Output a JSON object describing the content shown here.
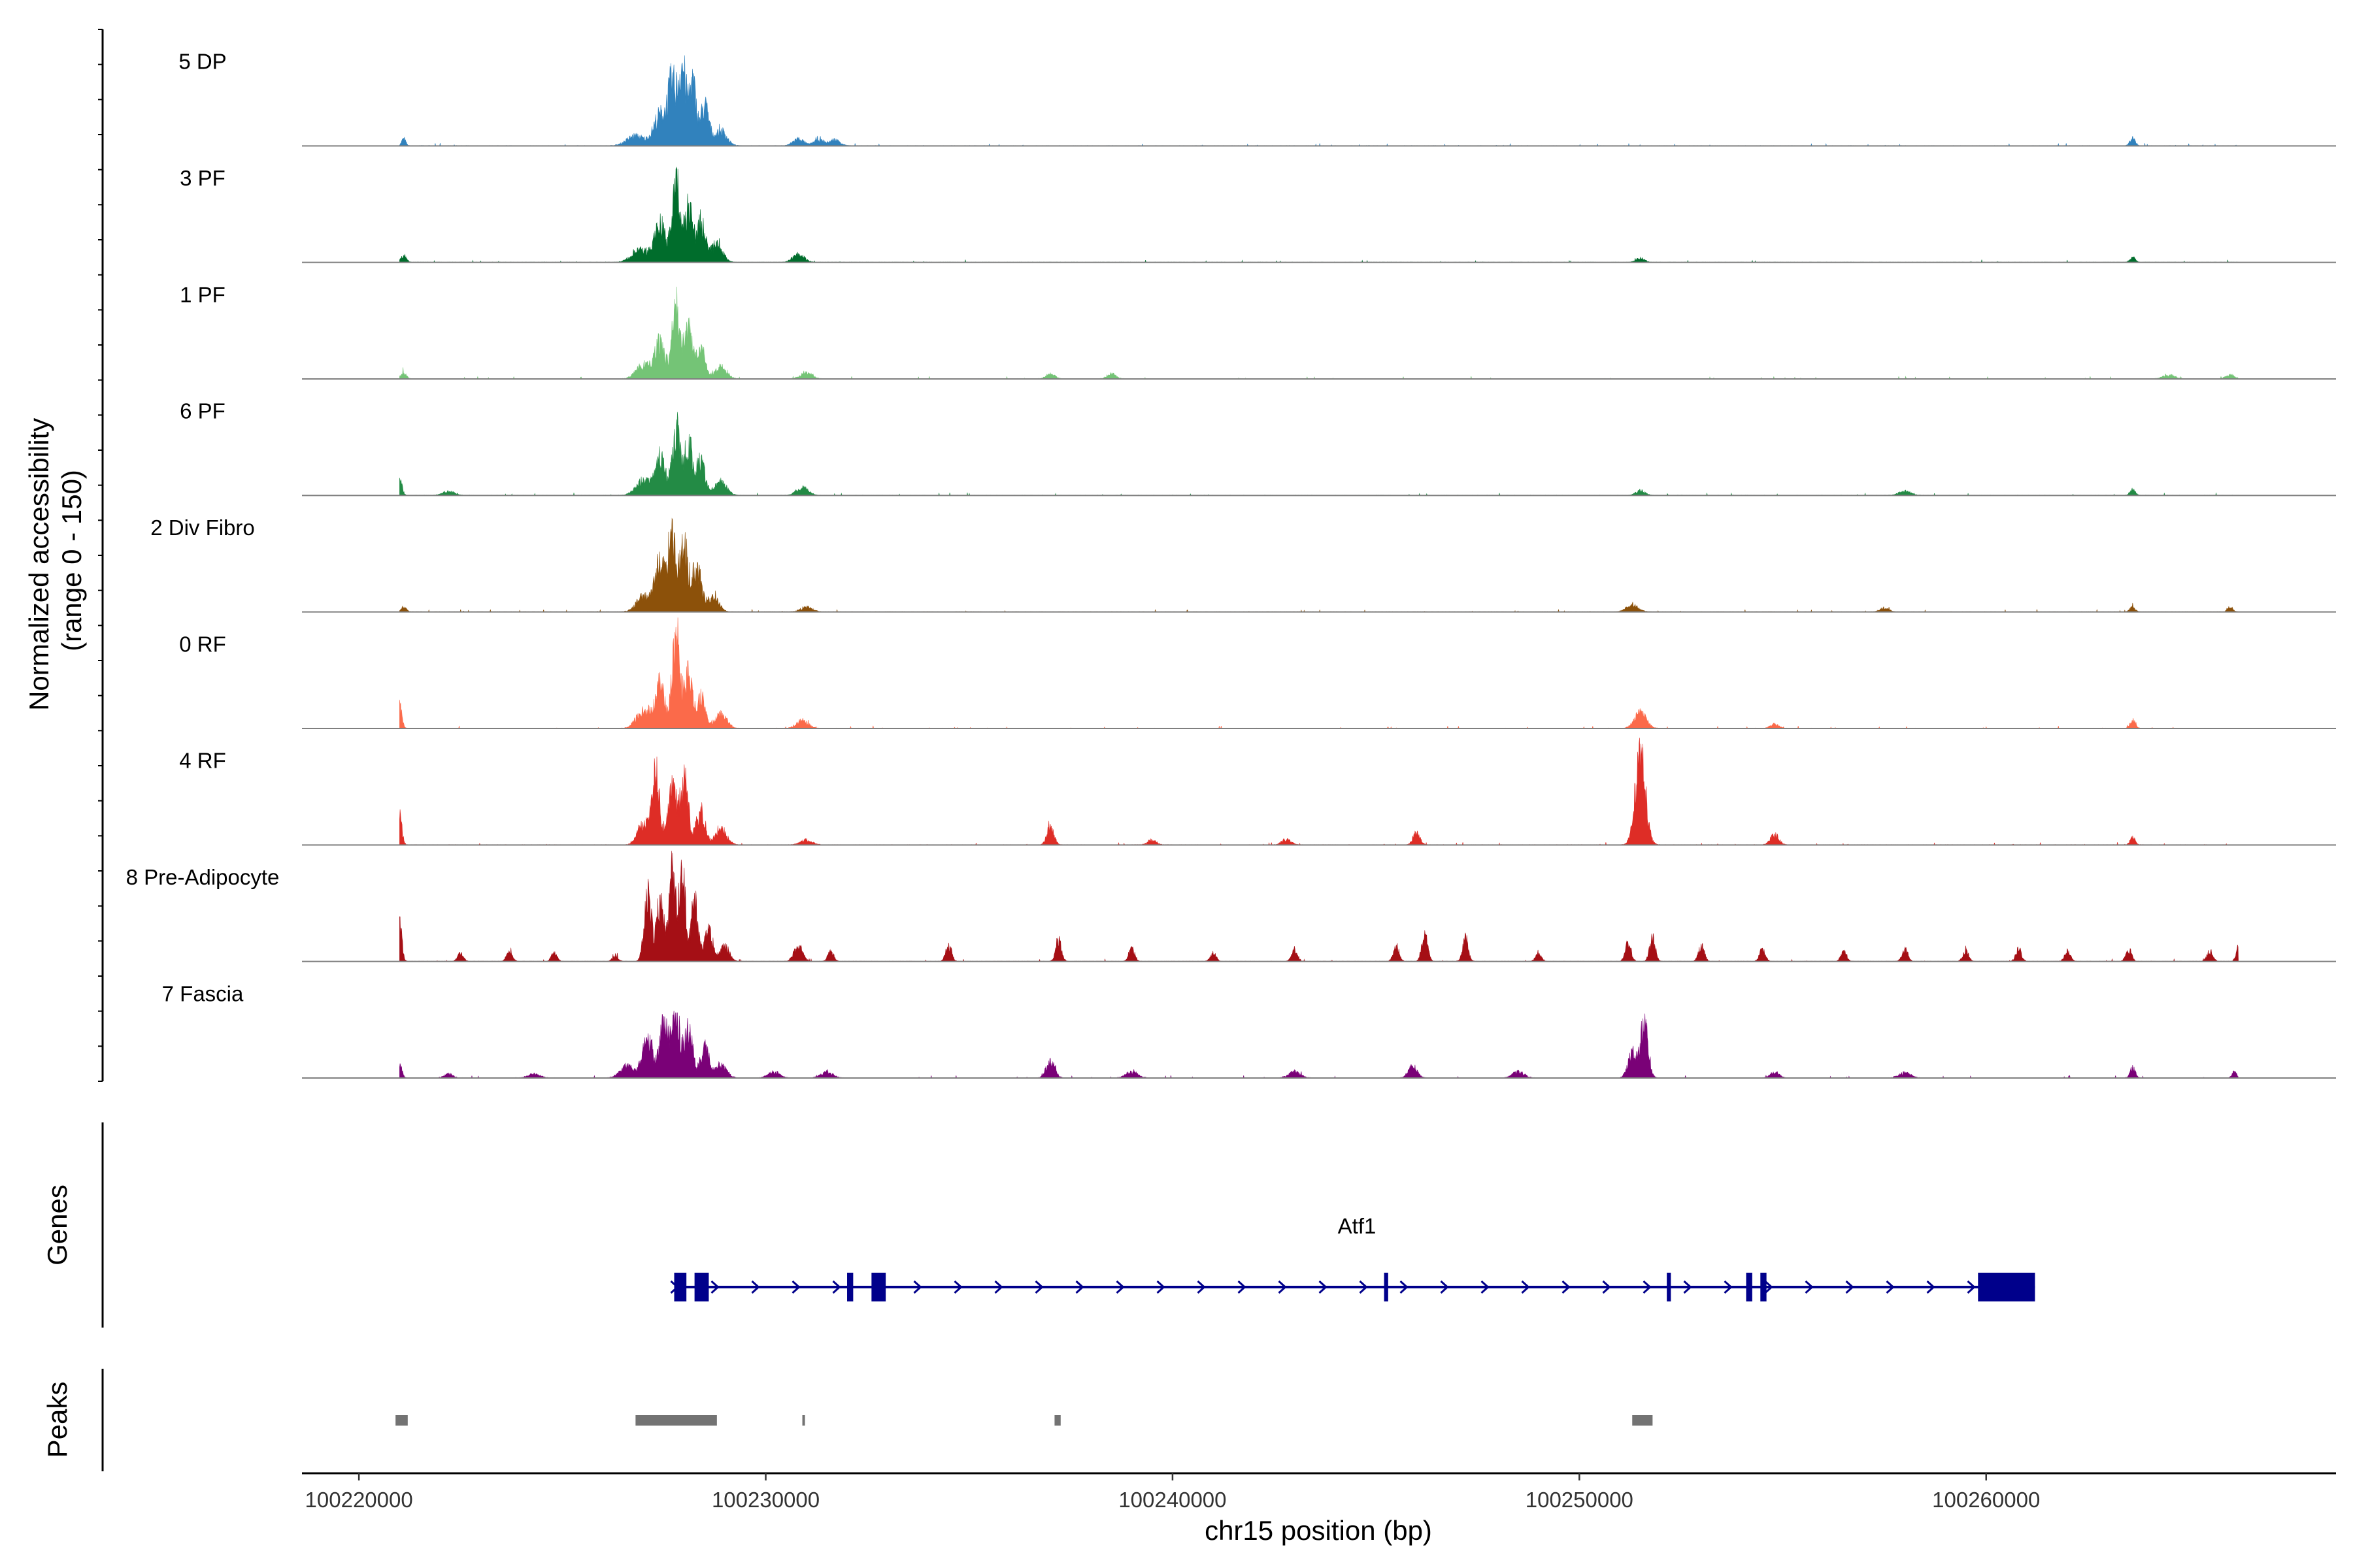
{
  "chart_data": {
    "type": "coverage",
    "title": "",
    "chromosome": "chr15",
    "xlabel": "chr15 position (bp)",
    "ylabel_line1": "Normalized accessibility",
    "ylabel_line2": "(range 0 - 150)",
    "ylim": [
      0,
      150
    ],
    "xlim": [
      100218600,
      100268600
    ],
    "data_range": [
      100221000,
      100266200
    ],
    "x_ticks": [
      100220000,
      100230000,
      100240000,
      100250000,
      100260000
    ],
    "x_tick_labels": [
      "100220000",
      "100230000",
      "100240000",
      "100250000",
      "100260000"
    ],
    "series": [
      {
        "name": "5 DP",
        "color": "#3182bd",
        "peaks": [
          [
            100221100,
            7,
            70
          ],
          [
            100226800,
            10,
            300
          ],
          [
            100227400,
            30,
            220
          ],
          [
            100227700,
            58,
            150
          ],
          [
            100227950,
            78,
            130
          ],
          [
            100228200,
            62,
            120
          ],
          [
            100228500,
            40,
            150
          ],
          [
            100228900,
            15,
            200
          ],
          [
            100230800,
            7,
            180
          ],
          [
            100231300,
            6,
            180
          ],
          [
            100231700,
            6,
            180
          ],
          [
            100263600,
            8,
            90
          ]
        ]
      },
      {
        "name": "3 PF",
        "color": "#006d2c",
        "peaks": [
          [
            100221100,
            7,
            90
          ],
          [
            100226900,
            12,
            280
          ],
          [
            100227400,
            38,
            200
          ],
          [
            100227800,
            75,
            140
          ],
          [
            100228100,
            55,
            130
          ],
          [
            100228400,
            40,
            150
          ],
          [
            100228800,
            18,
            200
          ],
          [
            100230800,
            8,
            200
          ],
          [
            100251500,
            4,
            150
          ],
          [
            100263600,
            5,
            90
          ]
        ]
      },
      {
        "name": "1 PF",
        "color": "#74c476",
        "peaks": [
          [
            100221100,
            7,
            90
          ],
          [
            100227000,
            14,
            250
          ],
          [
            100227400,
            35,
            180
          ],
          [
            100227800,
            72,
            140
          ],
          [
            100228100,
            52,
            130
          ],
          [
            100228400,
            30,
            150
          ],
          [
            100228900,
            12,
            200
          ],
          [
            100231000,
            6,
            200
          ],
          [
            100237000,
            5,
            150
          ],
          [
            100238500,
            5,
            150
          ],
          [
            100264500,
            4,
            200
          ],
          [
            100266000,
            4,
            150
          ]
        ]
      },
      {
        "name": "6 PF",
        "color": "#238b45",
        "peaks": [
          [
            100221000,
            16,
            80
          ],
          [
            100222200,
            4,
            200
          ],
          [
            100227000,
            15,
            260
          ],
          [
            100227400,
            38,
            180
          ],
          [
            100227800,
            68,
            140
          ],
          [
            100228100,
            55,
            130
          ],
          [
            100228400,
            35,
            150
          ],
          [
            100228900,
            14,
            200
          ],
          [
            100230900,
            8,
            200
          ],
          [
            100251500,
            5,
            150
          ],
          [
            100258000,
            4,
            200
          ],
          [
            100263600,
            6,
            90
          ]
        ]
      },
      {
        "name": "2 Div Fibro",
        "color": "#8c510a",
        "peaks": [
          [
            100221100,
            5,
            90
          ],
          [
            100227000,
            15,
            250
          ],
          [
            100227400,
            48,
            170
          ],
          [
            100227700,
            72,
            150
          ],
          [
            100228000,
            62,
            140
          ],
          [
            100228300,
            45,
            150
          ],
          [
            100228700,
            16,
            200
          ],
          [
            100231000,
            5,
            200
          ],
          [
            100251300,
            7,
            200
          ],
          [
            100257500,
            4,
            150
          ],
          [
            100263600,
            5,
            90
          ],
          [
            100266000,
            5,
            90
          ]
        ]
      },
      {
        "name": "0 RF",
        "color": "#fb6a4a",
        "peaks": [
          [
            100221000,
            22,
            80
          ],
          [
            100227000,
            18,
            250
          ],
          [
            100227400,
            42,
            170
          ],
          [
            100227800,
            88,
            140
          ],
          [
            100228100,
            55,
            130
          ],
          [
            100228400,
            32,
            150
          ],
          [
            100228900,
            14,
            200
          ],
          [
            100230900,
            8,
            200
          ],
          [
            100251500,
            16,
            200
          ],
          [
            100254800,
            4,
            150
          ],
          [
            100263600,
            8,
            90
          ]
        ]
      },
      {
        "name": "4 RF",
        "color": "#de2d26",
        "peaks": [
          [
            100221000,
            28,
            80
          ],
          [
            100227000,
            22,
            200
          ],
          [
            100227300,
            72,
            130
          ],
          [
            100227700,
            55,
            150
          ],
          [
            100228000,
            62,
            140
          ],
          [
            100228400,
            35,
            150
          ],
          [
            100228900,
            15,
            200
          ],
          [
            100231000,
            5,
            200
          ],
          [
            100237000,
            18,
            120
          ],
          [
            100239500,
            5,
            150
          ],
          [
            100242800,
            6,
            150
          ],
          [
            100246000,
            12,
            120
          ],
          [
            100251500,
            86,
            180
          ],
          [
            100254800,
            10,
            150
          ],
          [
            100263600,
            7,
            90
          ]
        ]
      },
      {
        "name": "8 Pre-Adipocyte",
        "color": "#a50f15",
        "peaks": [
          [
            100221000,
            42,
            80
          ],
          [
            100222500,
            8,
            100
          ],
          [
            100223700,
            10,
            100
          ],
          [
            100224800,
            8,
            100
          ],
          [
            100226300,
            6,
            100
          ],
          [
            100227100,
            72,
            120
          ],
          [
            100227400,
            62,
            120
          ],
          [
            100227700,
            88,
            120
          ],
          [
            100227950,
            82,
            110
          ],
          [
            100228250,
            60,
            120
          ],
          [
            100228600,
            30,
            150
          ],
          [
            100229000,
            15,
            150
          ],
          [
            100230800,
            15,
            150
          ],
          [
            100231600,
            10,
            100
          ],
          [
            100234500,
            16,
            100
          ],
          [
            100237200,
            20,
            100
          ],
          [
            100239000,
            12,
            100
          ],
          [
            100241000,
            8,
            100
          ],
          [
            100243000,
            12,
            100
          ],
          [
            100245500,
            15,
            100
          ],
          [
            100246200,
            30,
            100
          ],
          [
            100247200,
            22,
            100
          ],
          [
            100249000,
            8,
            100
          ],
          [
            100251200,
            18,
            100
          ],
          [
            100251800,
            22,
            100
          ],
          [
            100253000,
            15,
            100
          ],
          [
            100254500,
            12,
            100
          ],
          [
            100256500,
            10,
            100
          ],
          [
            100258000,
            12,
            100
          ],
          [
            100259500,
            10,
            100
          ],
          [
            100260800,
            12,
            100
          ],
          [
            100262000,
            10,
            100
          ],
          [
            100263500,
            12,
            100
          ],
          [
            100265500,
            10,
            100
          ],
          [
            100266200,
            14,
            80
          ]
        ]
      },
      {
        "name": "7 Fascia",
        "color": "#7a0177",
        "peaks": [
          [
            100221000,
            12,
            80
          ],
          [
            100222200,
            4,
            150
          ],
          [
            100224300,
            4,
            200
          ],
          [
            100226600,
            12,
            250
          ],
          [
            100227100,
            40,
            180
          ],
          [
            100227500,
            52,
            150
          ],
          [
            100227800,
            62,
            140
          ],
          [
            100228100,
            48,
            140
          ],
          [
            100228500,
            30,
            150
          ],
          [
            100228900,
            12,
            200
          ],
          [
            100230200,
            6,
            200
          ],
          [
            100231500,
            6,
            200
          ],
          [
            100237000,
            16,
            150
          ],
          [
            100239000,
            6,
            200
          ],
          [
            100243000,
            6,
            200
          ],
          [
            100245900,
            12,
            150
          ],
          [
            100248500,
            6,
            200
          ],
          [
            100251300,
            25,
            150
          ],
          [
            100251600,
            58,
            130
          ],
          [
            100254800,
            6,
            150
          ],
          [
            100258000,
            5,
            200
          ],
          [
            100263600,
            10,
            90
          ],
          [
            100266100,
            6,
            80
          ]
        ]
      }
    ],
    "genes_label": "Genes",
    "peaks_label": "Peaks",
    "gene": {
      "name": "Atf1",
      "color": "#00008b",
      "strand": "+",
      "start": 100227750,
      "end": 100261200,
      "exons": [
        [
          100227750,
          100228050
        ],
        [
          100228250,
          100228600
        ],
        [
          100232000,
          100232150
        ],
        [
          100232600,
          100232950
        ],
        [
          100245200,
          100245300
        ],
        [
          100252150,
          100252250
        ],
        [
          100254100,
          100254250
        ],
        [
          100254450,
          100254600
        ],
        [
          100259800,
          100261200
        ]
      ]
    },
    "peaks": [
      [
        100220900,
        100221200
      ],
      [
        100226800,
        100228800
      ],
      [
        100230900,
        100230950
      ],
      [
        100237100,
        100237250
      ],
      [
        100251300,
        100251800
      ]
    ]
  }
}
